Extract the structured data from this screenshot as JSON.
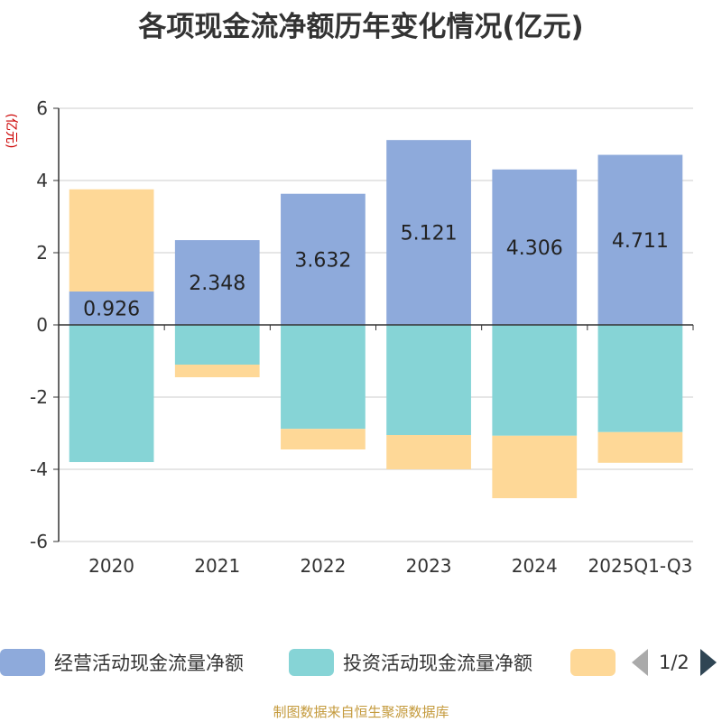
{
  "chart_data": {
    "type": "bar",
    "stacked": true,
    "title": "各项现金流净额历年变化情况(亿元)",
    "ylabel": "(亿元)",
    "xlabel": "",
    "ylim": [
      -6,
      6
    ],
    "yticks": [
      -6,
      -4,
      -2,
      0,
      2,
      4,
      6
    ],
    "categories": [
      "2020",
      "2021",
      "2022",
      "2023",
      "2024",
      "2025Q1-Q3"
    ],
    "series": [
      {
        "name": "经营活动现金流量净额",
        "color": "#8eaadb",
        "show_labels": true,
        "values": [
          0.926,
          2.348,
          3.632,
          5.121,
          4.306,
          4.711
        ]
      },
      {
        "name": "投资活动现金流量净额",
        "color": "#86d4d6",
        "show_labels": false,
        "values": [
          -3.8,
          -1.1,
          -2.88,
          -3.05,
          -3.07,
          -2.97
        ]
      },
      {
        "name": "",
        "color": "#fed897",
        "show_labels": false,
        "values": [
          2.83,
          -0.35,
          -0.57,
          -0.95,
          -1.73,
          -0.85
        ]
      }
    ]
  },
  "legend": {
    "items": [
      {
        "label": "经营活动现金流量净额",
        "color": "#8eaadb"
      },
      {
        "label": "投资活动现金流量净额",
        "color": "#86d4d6"
      },
      {
        "label": "",
        "color": "#fed897"
      }
    ],
    "page_text": "1/2"
  },
  "source_note": "制图数据来自恒生聚源数据库"
}
